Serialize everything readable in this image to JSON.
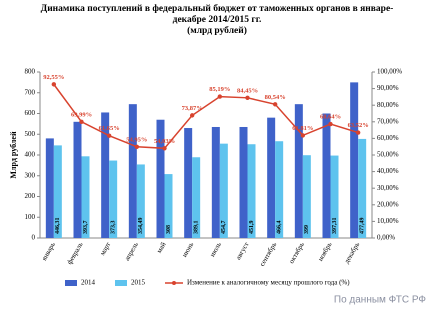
{
  "chart_data": {
    "type": "bar",
    "title": "Динамика поступлений в федеральный бюджет от таможенных органов в январе-декабре 2014/2015 гг.",
    "subtitle": "(млрд рублей)",
    "y_label": "Млрд рублей",
    "source": "По данным ФТС РФ",
    "categories": [
      "январь",
      "февраль",
      "март",
      "апрель",
      "май",
      "июнь",
      "июль",
      "август",
      "сентябрь",
      "октябрь",
      "ноябрь",
      "декабрь"
    ],
    "series": [
      {
        "name": "2014",
        "color": "#3f62c9",
        "values": [
          480,
          560,
          605,
          645,
          570,
          530,
          535,
          535,
          580,
          645,
          600,
          750
        ]
      },
      {
        "name": "2015",
        "color": "#5ec3ee",
        "values": [
          446.31,
          393.7,
          373.3,
          354.49,
          308,
          389.1,
          454.7,
          451.9,
          466.4,
          399,
          397.31,
          477.49
        ],
        "value_labels": [
          "446,31",
          "393,7",
          "373,3",
          "354,49",
          "308",
          "389,1",
          "454,7",
          "451,9",
          "466,4",
          "399",
          "397,31",
          "477,49"
        ]
      },
      {
        "name": "Изменение к аналогичному месяцу прошлого года (%)",
        "type": "line",
        "axis": "y2",
        "color": "#d8432e",
        "values": [
          92.55,
          69.99,
          61.65,
          54.95,
          54.03,
          73.87,
          85.19,
          84.45,
          80.54,
          61.81,
          68.64,
          63.52
        ],
        "value_labels": [
          "92,55%",
          "69,99%",
          "61,65%",
          "54,95%",
          "54,03%",
          "73,87%",
          "85,19%",
          "84,45%",
          "80,54%",
          "61,81%",
          "68,64%",
          "63,52%"
        ]
      }
    ],
    "ylim": [
      0,
      800
    ],
    "yticks": [
      0,
      100,
      200,
      300,
      400,
      500,
      600,
      700,
      800
    ],
    "y2lim": [
      0,
      100
    ],
    "y2ticks": [
      {
        "value": 0,
        "label": "0,00%"
      },
      {
        "value": 10,
        "label": "10,00%"
      },
      {
        "value": 20,
        "label": "20,00%"
      },
      {
        "value": 30,
        "label": "30,00%"
      },
      {
        "value": 40,
        "label": "40,00%"
      },
      {
        "value": 50,
        "label": "50,00%"
      },
      {
        "value": 60,
        "label": "60,00%"
      },
      {
        "value": 70,
        "label": "70,00%"
      },
      {
        "value": 80,
        "label": "80,00%"
      },
      {
        "value": 90,
        "label": "90,00%"
      },
      {
        "value": 100,
        "label": "100,00%"
      }
    ],
    "grid": false,
    "legend": "bottom"
  }
}
